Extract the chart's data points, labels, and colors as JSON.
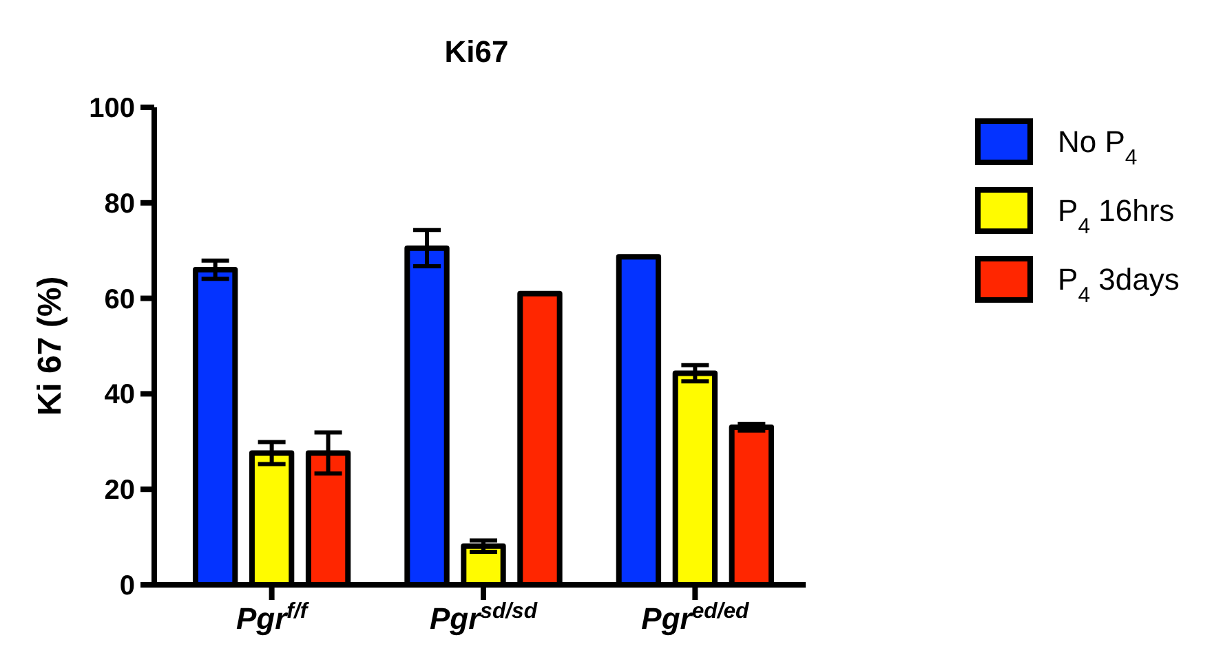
{
  "chart_data": {
    "type": "bar",
    "title": "Ki67",
    "ylabel": "Ki 67 (%)",
    "categories": [
      "Pgr$^{f/f}$",
      "Pgr$^{sd/sd}$",
      "Pgr$^{ed/ed}$"
    ],
    "series": [
      {
        "name": "No P$_{4}$",
        "color": "#0433ff",
        "values": [
          66.0,
          70.5,
          68.7
        ],
        "errors": [
          1.9,
          3.8,
          null
        ]
      },
      {
        "name": "P$_{4}$ 16hrs",
        "color": "#fffb00",
        "values": [
          27.6,
          8.1,
          44.3
        ],
        "errors": [
          2.3,
          1.2,
          1.7
        ]
      },
      {
        "name": "P$_{4}$ 3days",
        "color": "#ff2600",
        "values": [
          27.6,
          61.0,
          33.0
        ],
        "errors": [
          4.3,
          null,
          0.7
        ]
      }
    ],
    "ylim": [
      0,
      100
    ],
    "yticks": [
      0,
      20,
      40,
      60,
      80,
      100
    ],
    "grid": false,
    "legend": "right"
  }
}
